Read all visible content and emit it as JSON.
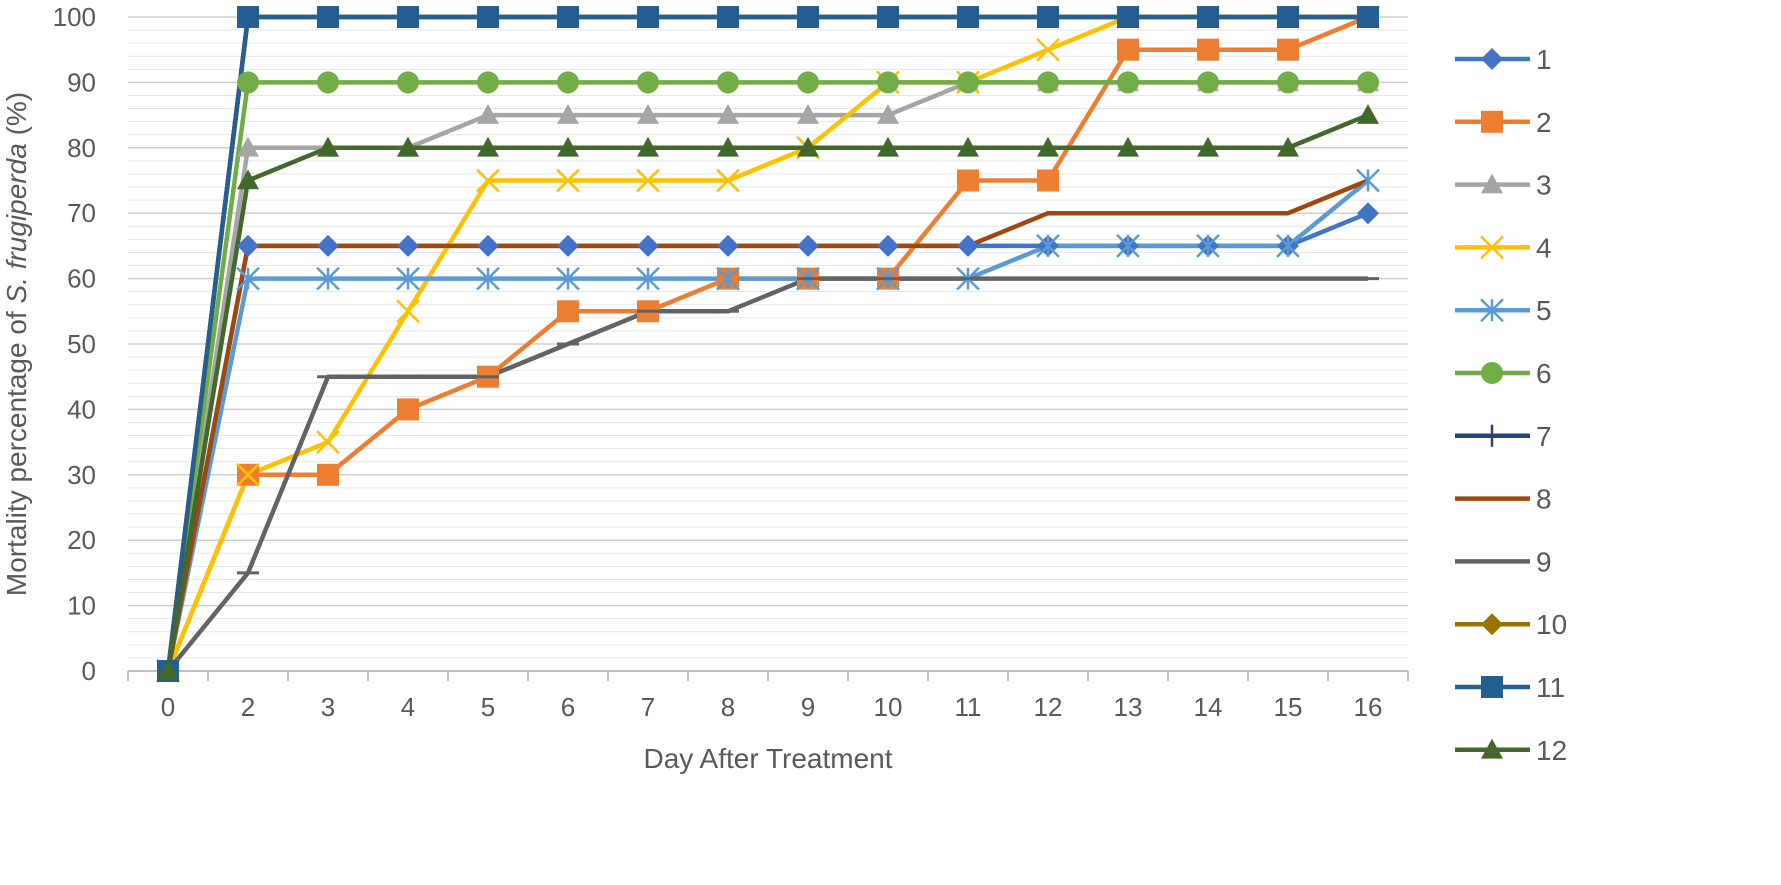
{
  "chart_data": {
    "type": "line",
    "title": "",
    "xlabel": "Day After Treatment",
    "ylabel_prefix": "Mortality percentage of ",
    "ylabel_italic": "S. frugiperda",
    "ylabel_suffix": " (%)",
    "categories": [
      "0",
      "2",
      "3",
      "4",
      "5",
      "6",
      "7",
      "8",
      "9",
      "10",
      "11",
      "12",
      "13",
      "14",
      "15",
      "16"
    ],
    "ylim": [
      0,
      100
    ],
    "y_ticks": [
      0,
      10,
      20,
      30,
      40,
      50,
      60,
      70,
      80,
      90,
      100
    ],
    "y_tick_labels": [
      "0",
      "10",
      "20",
      "30",
      "40",
      "50",
      "60",
      "70",
      "80",
      "90",
      "100"
    ],
    "minor_gridlines": true,
    "legend_position": "right",
    "series": [
      {
        "name": "1",
        "color": "#4472C4",
        "marker": "diamond",
        "values": [
          0,
          65,
          65,
          65,
          65,
          65,
          65,
          65,
          65,
          65,
          65,
          65,
          65,
          65,
          65,
          70
        ]
      },
      {
        "name": "2",
        "color": "#ED7D31",
        "marker": "square",
        "values": [
          0,
          30,
          30,
          40,
          45,
          55,
          55,
          60,
          60,
          60,
          75,
          75,
          95,
          95,
          95,
          100
        ]
      },
      {
        "name": "3",
        "color": "#A5A5A5",
        "marker": "triangle",
        "values": [
          0,
          80,
          80,
          80,
          85,
          85,
          85,
          85,
          85,
          85,
          90,
          90,
          90,
          90,
          90,
          90
        ]
      },
      {
        "name": "4",
        "color": "#FFC000",
        "marker": "x",
        "values": [
          0,
          30,
          35,
          55,
          75,
          75,
          75,
          75,
          80,
          90,
          90,
          95,
          100,
          100,
          100,
          100
        ]
      },
      {
        "name": "5",
        "color": "#5B9BD5",
        "marker": "star",
        "values": [
          0,
          60,
          60,
          60,
          60,
          60,
          60,
          60,
          60,
          60,
          60,
          65,
          65,
          65,
          65,
          75
        ]
      },
      {
        "name": "6",
        "color": "#70AD47",
        "marker": "circle",
        "values": [
          0,
          90,
          90,
          90,
          90,
          90,
          90,
          90,
          90,
          90,
          90,
          90,
          90,
          90,
          90,
          90
        ]
      },
      {
        "name": "7",
        "color": "#264478",
        "marker": "plus",
        "values": [
          0,
          100,
          100,
          100,
          100,
          100,
          100,
          100,
          100,
          100,
          100,
          100,
          100,
          100,
          100,
          100
        ]
      },
      {
        "name": "8",
        "color": "#9E480E",
        "marker": "none",
        "values": [
          0,
          65,
          65,
          65,
          65,
          65,
          65,
          65,
          65,
          65,
          65,
          70,
          70,
          70,
          70,
          75
        ]
      },
      {
        "name": "9",
        "color": "#636363",
        "marker": "dash",
        "values": [
          0,
          15,
          45,
          45,
          45,
          50,
          55,
          55,
          60,
          60,
          60,
          60,
          60,
          60,
          60,
          60
        ]
      },
      {
        "name": "10",
        "color": "#997300",
        "marker": "diamond",
        "values": [
          0,
          100,
          100,
          100,
          100,
          100,
          100,
          100,
          100,
          100,
          100,
          100,
          100,
          100,
          100,
          100
        ]
      },
      {
        "name": "11",
        "color": "#255E91",
        "marker": "square",
        "values": [
          0,
          100,
          100,
          100,
          100,
          100,
          100,
          100,
          100,
          100,
          100,
          100,
          100,
          100,
          100,
          100
        ]
      },
      {
        "name": "12",
        "color": "#43682B",
        "marker": "triangle",
        "values": [
          0,
          75,
          80,
          80,
          80,
          80,
          80,
          80,
          80,
          80,
          80,
          80,
          80,
          80,
          80,
          85
        ]
      }
    ]
  }
}
